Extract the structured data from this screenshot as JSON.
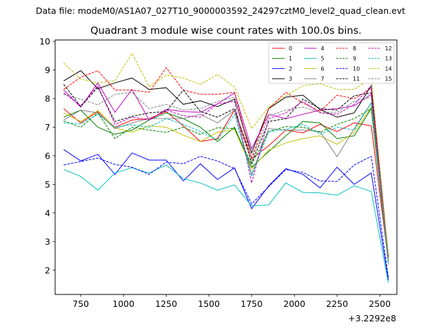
{
  "chart_data": {
    "type": "line",
    "suptitle": "Data file: modeM0/AS1A07_027T10_9000003592_24297cztM0_level2_quad_clean.evt",
    "title": "Quadrant 3 module wise count rates with 100.0s bins.",
    "xlabel": "",
    "ylabel": "",
    "x_offset_label": "+3.2292e8",
    "xlim": [
      600,
      2600
    ],
    "ylim": [
      1.15,
      10.05
    ],
    "xticks": [
      750,
      1000,
      1250,
      1500,
      1750,
      2000,
      2250,
      2500
    ],
    "xtick_labels": [
      "750",
      "1000",
      "1250",
      "1500",
      "1750",
      "2000",
      "2250",
      "2500"
    ],
    "yticks": [
      2,
      3,
      4,
      5,
      6,
      7,
      8,
      9,
      10
    ],
    "ytick_labels": [
      "2",
      "3",
      "4",
      "5",
      "6",
      "7",
      "8",
      "9",
      "10"
    ],
    "grid": false,
    "legend_position": "top-right",
    "x": [
      650,
      750,
      850,
      950,
      1050,
      1150,
      1250,
      1350,
      1450,
      1550,
      1650,
      1750,
      1850,
      1950,
      2050,
      2150,
      2250,
      2350,
      2450,
      2550
    ],
    "series": [
      {
        "name": "0",
        "color": "#ff0000",
        "dash": "solid",
        "values": [
          7.65,
          7.15,
          7.55,
          7.0,
          7.25,
          7.3,
          7.55,
          7.05,
          6.5,
          6.6,
          7.6,
          5.9,
          6.35,
          6.9,
          6.8,
          7.1,
          6.85,
          7.15,
          7.05,
          2.3
        ]
      },
      {
        "name": "1",
        "color": "#008000",
        "dash": "solid",
        "values": [
          7.35,
          7.6,
          7.0,
          6.75,
          6.9,
          7.25,
          7.5,
          7.3,
          7.0,
          6.5,
          7.0,
          5.6,
          6.15,
          6.7,
          7.2,
          7.15,
          6.6,
          6.7,
          7.65,
          2.25
        ]
      },
      {
        "name": "2",
        "color": "#0000ff",
        "dash": "solid",
        "values": [
          6.22,
          5.82,
          6.05,
          5.35,
          6.1,
          5.85,
          5.85,
          5.12,
          5.72,
          5.17,
          5.58,
          4.15,
          4.95,
          5.55,
          5.35,
          4.88,
          5.6,
          5.0,
          5.4,
          1.65
        ]
      },
      {
        "name": "3",
        "color": "#000000",
        "dash": "solid",
        "values": [
          8.62,
          8.98,
          8.35,
          8.55,
          8.72,
          8.32,
          8.38,
          7.8,
          7.92,
          7.72,
          7.98,
          6.1,
          7.65,
          8.05,
          8.12,
          7.62,
          7.35,
          7.5,
          8.45,
          2.45
        ]
      },
      {
        "name": "4",
        "color": "#c000c0",
        "dash": "solid",
        "values": [
          8.3,
          7.7,
          8.55,
          7.52,
          8.32,
          7.25,
          7.62,
          7.55,
          7.52,
          7.82,
          8.2,
          6.25,
          7.45,
          7.3,
          7.45,
          7.6,
          7.65,
          7.75,
          8.15,
          2.4
        ]
      },
      {
        "name": "5",
        "color": "#00bfbf",
        "dash": "solid",
        "values": [
          5.52,
          5.28,
          4.8,
          5.4,
          5.58,
          5.4,
          5.68,
          5.2,
          5.05,
          4.8,
          4.98,
          4.25,
          4.28,
          5.05,
          4.72,
          4.7,
          4.62,
          4.95,
          4.75,
          1.55
        ]
      },
      {
        "name": "6",
        "color": "#bfbf00",
        "dash": "solid",
        "values": [
          7.5,
          7.2,
          7.58,
          6.98,
          6.82,
          7.05,
          7.0,
          6.72,
          6.5,
          6.82,
          6.92,
          5.55,
          6.2,
          6.45,
          6.6,
          6.7,
          6.4,
          6.82,
          7.7,
          2.35
        ]
      },
      {
        "name": "7",
        "color": "#808080",
        "dash": "solid",
        "values": [
          7.25,
          7.6,
          7.5,
          6.95,
          7.15,
          7.3,
          7.3,
          7.3,
          7.45,
          7.15,
          7.6,
          5.35,
          6.95,
          6.9,
          6.9,
          6.85,
          5.97,
          6.95,
          7.85,
          2.2
        ]
      },
      {
        "name": "8",
        "color": "#ff0000",
        "dash": "dashed",
        "values": [
          8.32,
          8.75,
          8.98,
          8.3,
          8.3,
          8.22,
          9.08,
          8.3,
          8.15,
          8.15,
          8.22,
          5.9,
          7.65,
          8.22,
          7.85,
          7.55,
          8.12,
          8.0,
          8.35,
          2.5
        ]
      },
      {
        "name": "9",
        "color": "#008000",
        "dash": "dashed",
        "values": [
          7.22,
          7.0,
          7.5,
          6.6,
          7.0,
          6.9,
          6.82,
          7.0,
          6.75,
          6.98,
          6.95,
          5.7,
          6.85,
          7.02,
          7.0,
          6.82,
          7.1,
          7.3,
          7.65,
          2.3
        ]
      },
      {
        "name": "10",
        "color": "#0000ff",
        "dash": "dashed",
        "values": [
          5.68,
          5.8,
          5.92,
          5.7,
          5.6,
          5.35,
          5.78,
          5.72,
          5.98,
          5.82,
          5.55,
          4.32,
          4.92,
          5.52,
          5.42,
          5.12,
          5.1,
          5.68,
          5.98,
          1.75
        ]
      },
      {
        "name": "11",
        "color": "#000000",
        "dash": "dashed",
        "values": [
          8.5,
          7.72,
          8.4,
          7.2,
          7.38,
          7.5,
          7.55,
          8.3,
          7.55,
          7.35,
          7.65,
          5.75,
          7.2,
          7.3,
          7.98,
          7.65,
          7.6,
          8.1,
          8.2,
          2.5
        ]
      },
      {
        "name": "12",
        "color": "#c000c0",
        "dash": "dashed",
        "values": [
          8.2,
          7.75,
          8.45,
          7.1,
          7.35,
          7.25,
          7.6,
          7.4,
          7.35,
          7.82,
          7.9,
          5.05,
          7.3,
          7.5,
          7.9,
          7.5,
          7.45,
          7.8,
          8.45,
          2.4
        ]
      },
      {
        "name": "13",
        "color": "#00bfbf",
        "dash": "dashed",
        "values": [
          7.15,
          7.12,
          7.45,
          7.0,
          7.08,
          7.0,
          7.3,
          7.1,
          6.85,
          6.55,
          7.45,
          5.28,
          6.85,
          6.92,
          7.1,
          6.75,
          7.0,
          6.9,
          7.85,
          2.25
        ]
      },
      {
        "name": "14",
        "color": "#bfbf00",
        "dash": "dashed",
        "values": [
          9.25,
          8.68,
          8.55,
          8.62,
          9.58,
          8.42,
          8.82,
          8.72,
          8.5,
          8.85,
          8.4,
          6.95,
          7.7,
          8.1,
          8.45,
          8.52,
          8.32,
          8.32,
          8.72,
          2.55
        ]
      },
      {
        "name": "15",
        "color": "#808080",
        "dash": "dashed",
        "values": [
          8.15,
          7.98,
          7.78,
          8.15,
          8.22,
          7.65,
          7.8,
          7.6,
          7.65,
          7.9,
          8.05,
          5.85,
          7.4,
          7.6,
          7.7,
          7.52,
          7.52,
          7.9,
          8.05,
          2.4
        ]
      }
    ]
  }
}
